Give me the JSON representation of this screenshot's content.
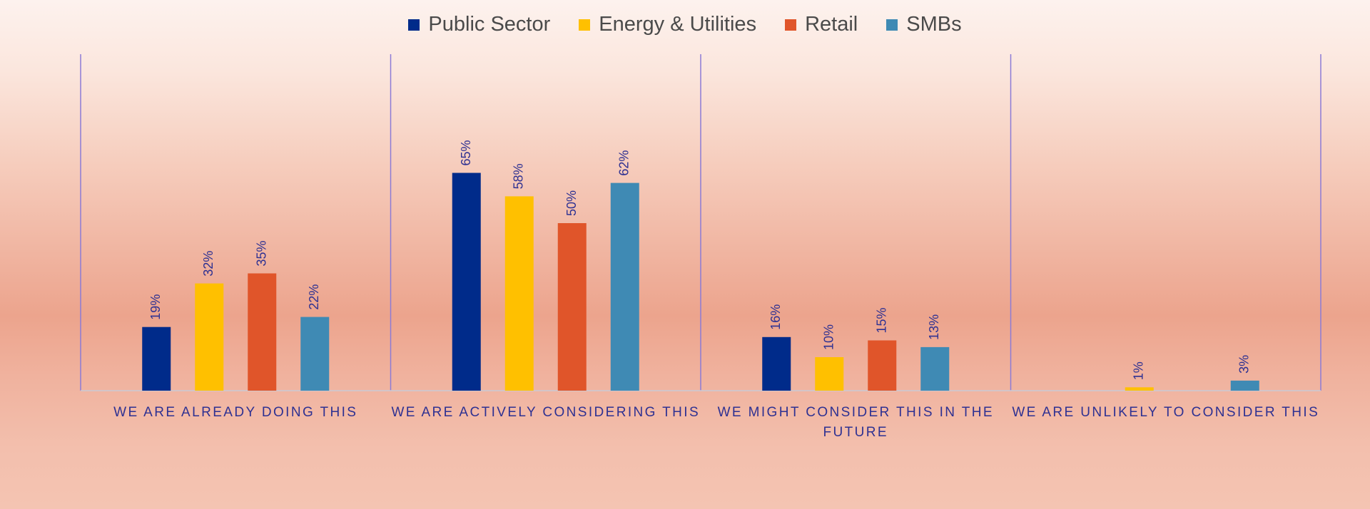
{
  "chart_data": {
    "type": "bar",
    "categories": [
      "WE ARE ALREADY DOING THIS",
      "WE ARE ACTIVELY CONSIDERING THIS",
      "WE MIGHT CONSIDER THIS IN THE FUTURE",
      "WE ARE UNLIKELY TO CONSIDER THIS"
    ],
    "category_lines": [
      [
        "WE ARE ALREADY DOING THIS"
      ],
      [
        "WE ARE ACTIVELY CONSIDERING THIS"
      ],
      [
        "WE MIGHT CONSIDER THIS IN THE",
        "FUTURE"
      ],
      [
        "WE ARE UNLIKELY TO CONSIDER THIS"
      ]
    ],
    "series": [
      {
        "name": "Public Sector",
        "color": "#002b8a",
        "values": [
          19,
          65,
          16,
          null
        ],
        "labels": [
          "19%",
          "65%",
          "16%",
          ""
        ]
      },
      {
        "name": "Energy & Utilities",
        "color": "#ffc000",
        "values": [
          32,
          58,
          10,
          1
        ],
        "labels": [
          "32%",
          "58%",
          "10%",
          "1%"
        ]
      },
      {
        "name": "Retail",
        "color": "#e0552a",
        "values": [
          35,
          50,
          15,
          null
        ],
        "labels": [
          "35%",
          "50%",
          "15%",
          ""
        ]
      },
      {
        "name": "SMBs",
        "color": "#3f8ab4",
        "values": [
          22,
          62,
          13,
          3
        ],
        "labels": [
          "22%",
          "62%",
          "13%",
          "3%"
        ]
      }
    ],
    "ylim": [
      0,
      100
    ],
    "grid": false,
    "legend_position": "top-center",
    "colors": {
      "axis_text": "#2e3192",
      "data_label": "#2e3192",
      "divider": "#8c7bd6",
      "baseline": "#c9c9d6",
      "legend_text": "#4a4a4a"
    }
  }
}
